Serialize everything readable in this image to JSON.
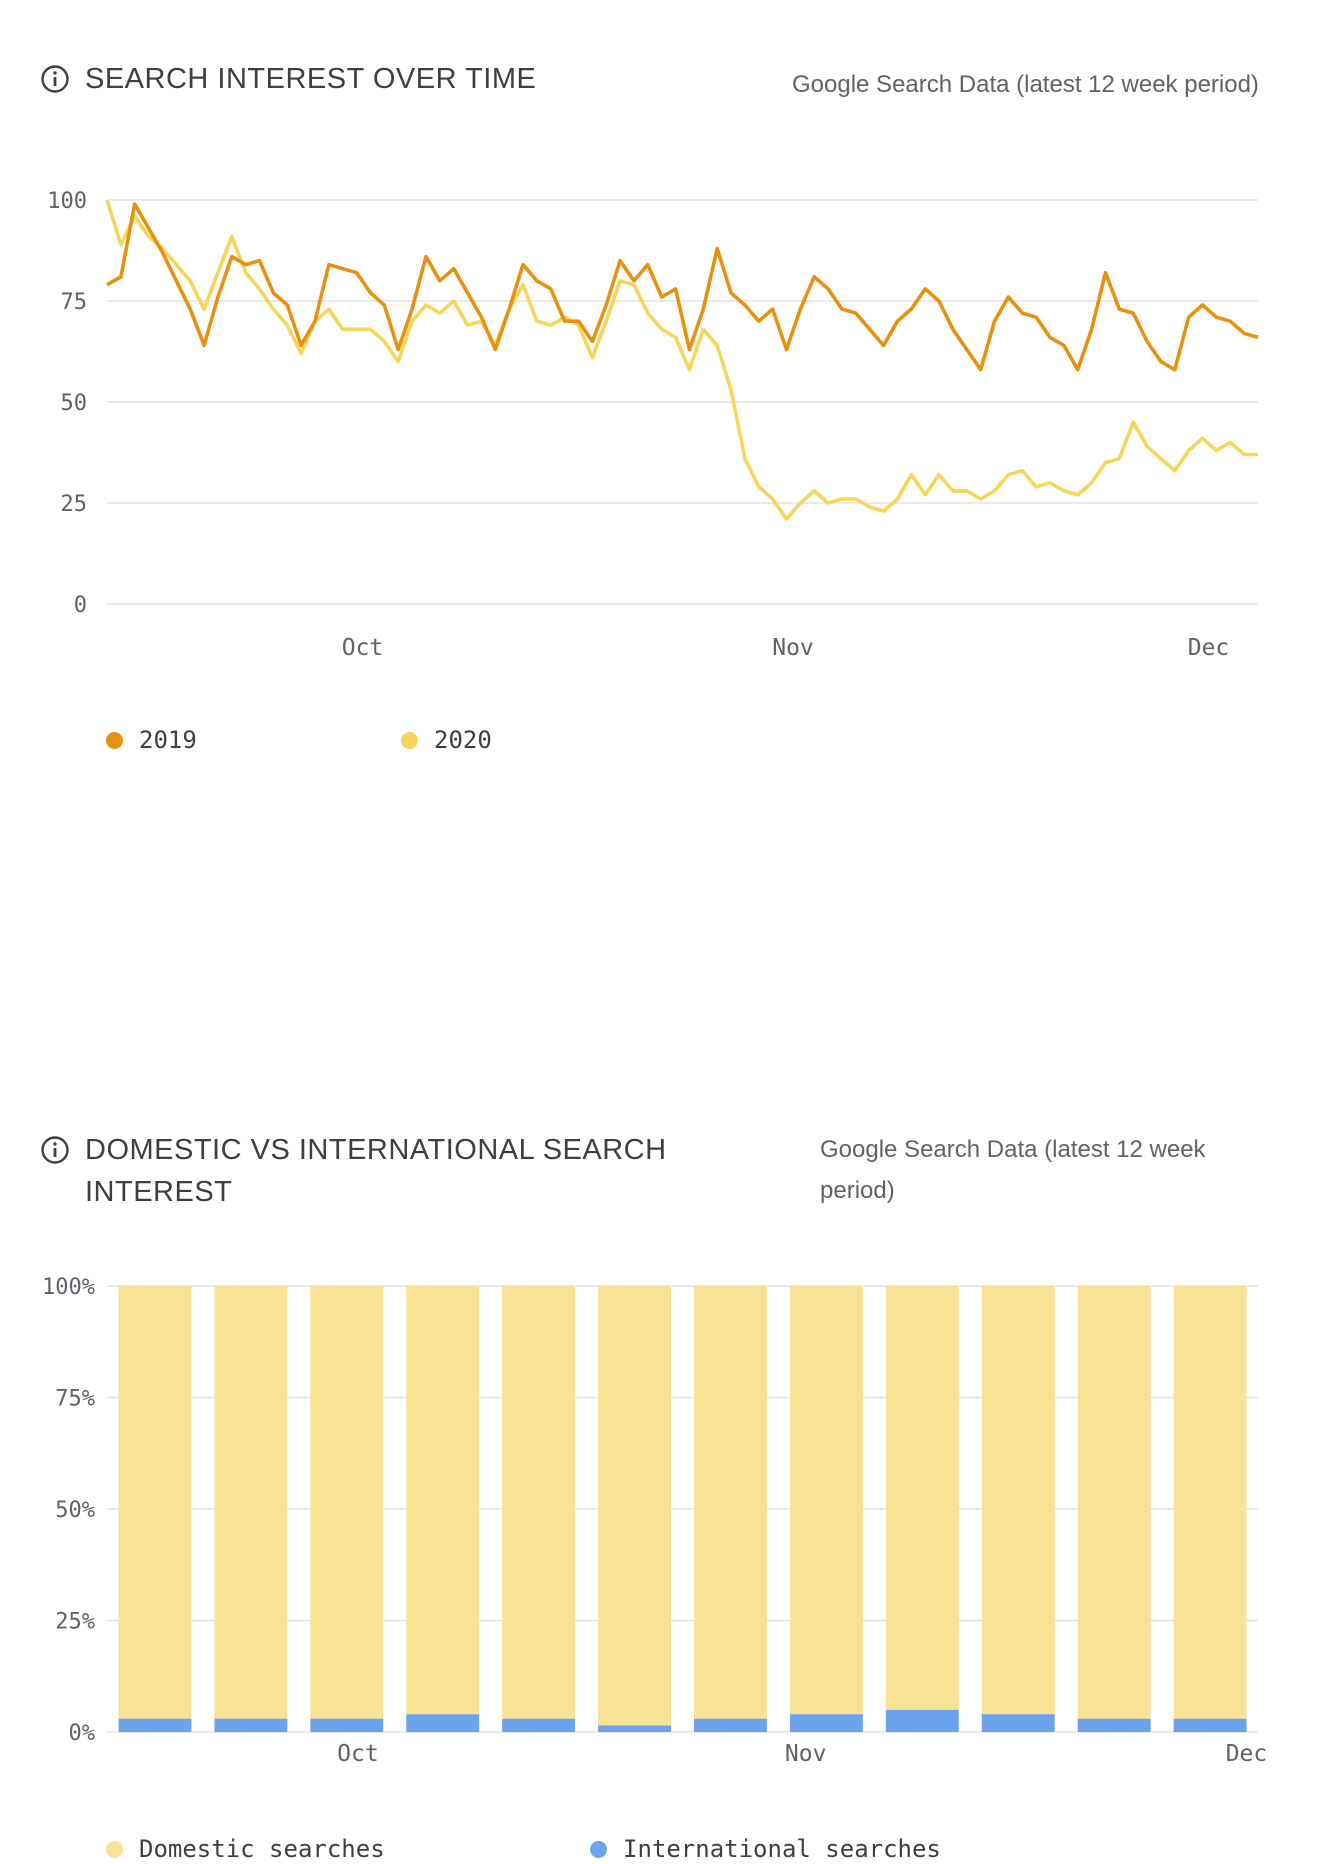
{
  "chart_data": [
    {
      "type": "line",
      "title": "SEARCH INTEREST OVER TIME",
      "subtitle": "Google Search Data (latest 12 week period)",
      "x_tick_labels": [
        "Oct",
        "Nov",
        "Dec"
      ],
      "y_ticks": [
        0,
        25,
        50,
        75,
        100
      ],
      "ylim": [
        0,
        100
      ],
      "grid": true,
      "legend_position": "bottom-left",
      "series": [
        {
          "name": "2019",
          "color": "#e8900f",
          "values": [
            79,
            81,
            99,
            93,
            87,
            80,
            73,
            64,
            76,
            86,
            84,
            85,
            77,
            74,
            64,
            70,
            84,
            83,
            82,
            77,
            74,
            63,
            73,
            86,
            80,
            83,
            77,
            71,
            63,
            73,
            84,
            80,
            78,
            70,
            70,
            65,
            74,
            85,
            80,
            84,
            76,
            78,
            63,
            73,
            88,
            77,
            74,
            70,
            73,
            63,
            73,
            81,
            78,
            73,
            72,
            68,
            64,
            70,
            73,
            78,
            75,
            68,
            63,
            58,
            70,
            76,
            72,
            71,
            66,
            64,
            58,
            68,
            82,
            73,
            72,
            65,
            60,
            58,
            71,
            74,
            71,
            70,
            67,
            66
          ]
        },
        {
          "name": "2020",
          "color": "#f5d55a",
          "values": [
            100,
            89,
            96,
            91,
            88,
            84,
            80,
            73,
            82,
            91,
            82,
            78,
            73,
            69,
            62,
            70,
            73,
            68,
            68,
            68,
            65,
            60,
            70,
            74,
            72,
            75,
            69,
            70,
            64,
            73,
            79,
            70,
            69,
            71,
            69,
            61,
            70,
            80,
            79,
            72,
            68,
            66,
            58,
            68,
            64,
            53,
            36,
            29,
            26,
            21,
            25,
            28,
            25,
            26,
            26,
            24,
            23,
            26,
            32,
            27,
            32,
            28,
            28,
            26,
            28,
            32,
            33,
            29,
            30,
            28,
            27,
            30,
            35,
            36,
            45,
            39,
            36,
            33,
            38,
            41,
            38,
            40,
            37,
            37
          ]
        }
      ]
    },
    {
      "type": "bar",
      "stacked": true,
      "title": "DOMESTIC VS INTERNATIONAL SEARCH INTEREST",
      "subtitle": "Google Search Data (latest 12 week period)",
      "x_tick_labels": [
        "Oct",
        "Nov",
        "Dec"
      ],
      "y_ticks": [
        "0%",
        "25%",
        "50%",
        "75%",
        "100%"
      ],
      "ylim": [
        0,
        100
      ],
      "grid": true,
      "legend_position": "bottom-left",
      "series": [
        {
          "name": "Domestic searches",
          "color": "#fae294",
          "values": [
            97,
            97,
            97,
            96,
            97,
            98.5,
            97,
            96,
            95,
            96,
            97,
            97
          ]
        },
        {
          "name": "International searches",
          "color": "#6ba3ec",
          "values": [
            3,
            3,
            3,
            4,
            3,
            1.5,
            3,
            4,
            5,
            4,
            3,
            3
          ]
        }
      ]
    }
  ]
}
